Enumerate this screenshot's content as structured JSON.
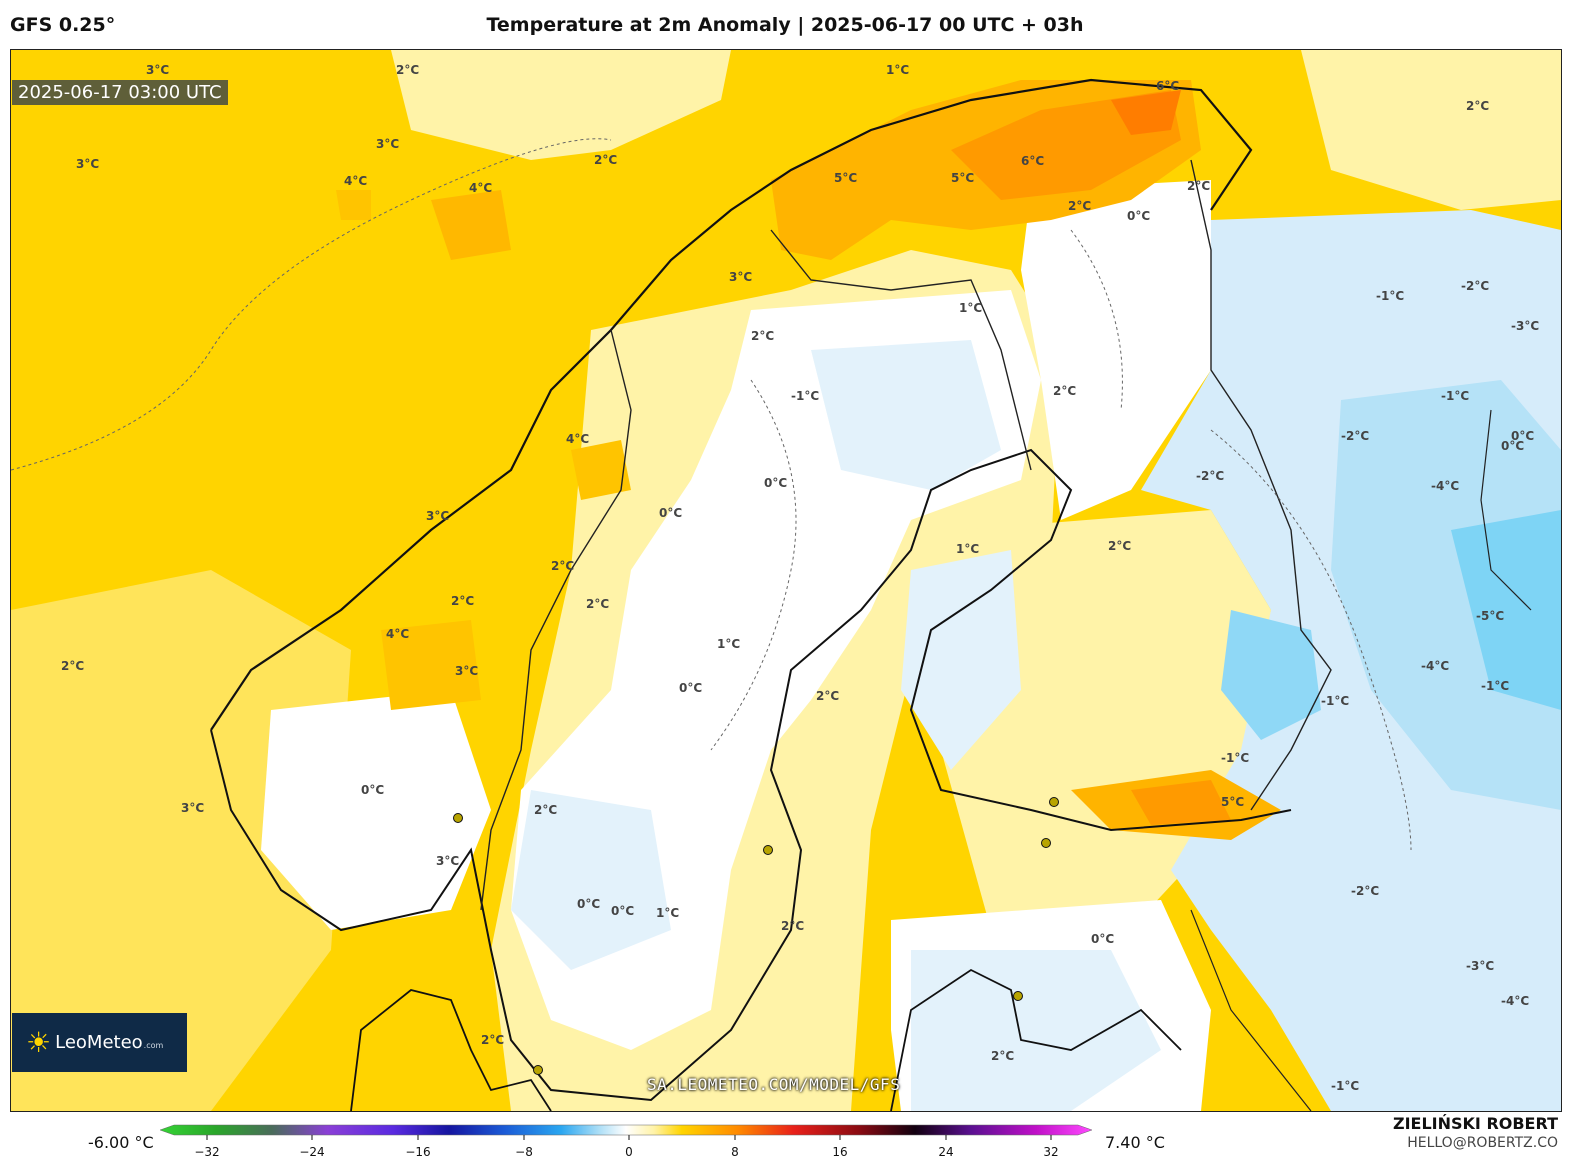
{
  "header": {
    "model": "GFS 0.25°",
    "title": "Temperature at 2m Anomaly | 2025-06-17 00 UTC + 03h"
  },
  "map": {
    "timestamp": "2025-06-17 03:00 UTC",
    "watermark": "SA.LEOMETEO.COM/MODEL/GFS",
    "logo": {
      "name": "LeoMeteo",
      "domain": ".com"
    },
    "contour_labels": [
      "3°C",
      "2°C",
      "1°C",
      "2°C",
      "3°C",
      "4°C",
      "4°C",
      "2°C",
      "3°C",
      "6°C",
      "6°C",
      "5°C",
      "5°C",
      "2°C",
      "0°C",
      "2°C",
      "3°C",
      "2°C",
      "1°C",
      "-1°C",
      "2°C",
      "0°C",
      "0°C",
      "4°C",
      "3°C",
      "2°C",
      "2°C",
      "2°C",
      "0°C",
      "1°C",
      "4°C",
      "3°C",
      "2°C",
      "0°C",
      "2°C",
      "0°C",
      "2°C",
      "1°C",
      "0°C",
      "3°C",
      "2°C",
      "-1°C",
      "-2°C",
      "-3°C",
      "-4°C",
      "-5°C",
      "-4°C",
      "0°C",
      "-2°C",
      "-1°C",
      "-1°C",
      "5°C",
      "-1°C",
      "-2°C",
      "0°C",
      "-1°C",
      "-2°C",
      "-3°C",
      "-4°C",
      "-1°C",
      "2°C",
      "3°C",
      "2°C",
      "2°C",
      "1°C",
      "0°C"
    ],
    "colors": {
      "warm_base": "#ffd400",
      "pale_warm": "#fff3a8",
      "orange": "#ff9a00",
      "neutral": "#ffffff",
      "cool": "#d6ecfa",
      "cold": "#7ed4f5"
    }
  },
  "legend": {
    "min_label": "-6.00 °C",
    "max_label": "7.40 °C",
    "ticks": [
      "−32",
      "−24",
      "−16",
      "−8",
      "0",
      "8",
      "16",
      "24",
      "32"
    ]
  },
  "credit": {
    "name": "ZIELIŃSKI ROBERT",
    "email": "HELLO@ROBERTZ.CO"
  }
}
